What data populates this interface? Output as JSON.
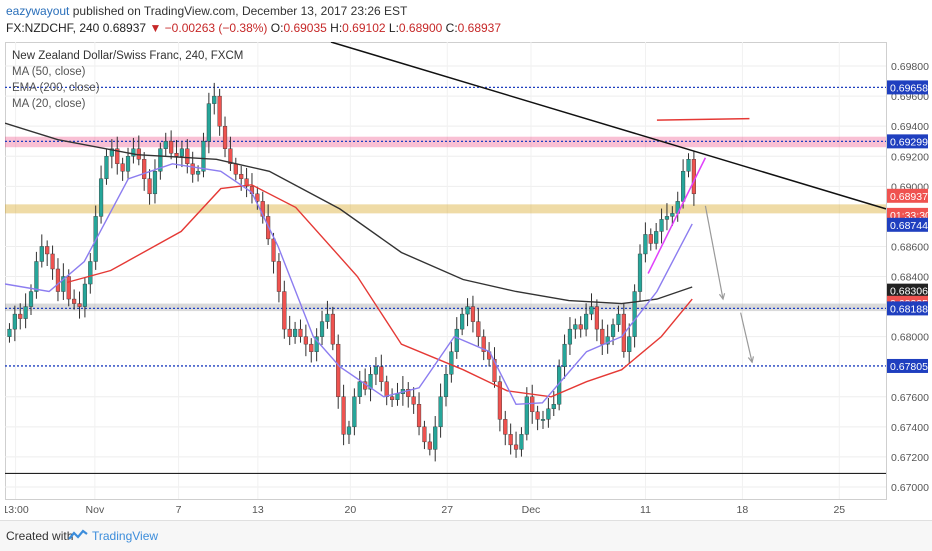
{
  "header": {
    "author": "eazywayout",
    "published_text": "published on TradingView.com, December 13, 2017 23:26 EST",
    "symbol": "FX:NZDCHF, 240",
    "last": "0.68937",
    "change": "−0.00263 (−0.38%)",
    "o_label": "O:",
    "o_value": "0.69035",
    "h_label": "H:",
    "h_value": "0.69102",
    "l_label": "L:",
    "l_value": "0.68900",
    "c_label": "C:",
    "c_value": "0.68937"
  },
  "legend": {
    "title": "New Zealand Dollar/Swiss Franc, 240, FXCM",
    "items": [
      "MA (50, close)",
      "EMA (200, close)",
      "MA (20, close)"
    ]
  },
  "footer": {
    "created": "Created with",
    "brand": "TradingView"
  },
  "colors": {
    "bull": "#26a69a",
    "bear": "#ef5350",
    "candle_wick": "#2f2f2f",
    "ma50": "#e53935",
    "ema200": "#333333",
    "ma20": "#8c7df0",
    "resistance": "#1f3fbf",
    "trend": "#111111"
  },
  "chart_data": {
    "type": "candlestick",
    "symbol": "NZDCHF",
    "timeframe": "240",
    "y_range": [
      0.6692,
      0.6996
    ],
    "y_ticks": [
      "0.69800",
      "0.69600",
      "0.69400",
      "0.69200",
      "0.69000",
      "0.68600",
      "0.68400",
      "0.68000",
      "0.67600",
      "0.67400",
      "0.67200",
      "0.67000"
    ],
    "x_ticks": [
      "13:00",
      "Nov",
      "7",
      "13",
      "20",
      "27",
      "Dec",
      "11",
      "18",
      "25"
    ],
    "price_labels": [
      {
        "text": "0.69658",
        "value": 0.69658,
        "bg": "#1f3fbf"
      },
      {
        "text": "0.69299",
        "value": 0.69299,
        "bg": "#1f3fbf"
      },
      {
        "text": "0.68937",
        "value": 0.68937,
        "bg": "#ef5350"
      },
      {
        "text": "01:33:30",
        "value": 0.6881,
        "bg": "#ef5350"
      },
      {
        "text": "0.68744",
        "value": 0.68744,
        "bg": "#1f3fbf"
      },
      {
        "text": "0.68306",
        "value": 0.68306,
        "bg": "#222222"
      },
      {
        "text": "0.68225",
        "value": 0.68225,
        "bg": "#ef5350"
      },
      {
        "text": "0.68188",
        "value": 0.68188,
        "bg": "#1f3fbf"
      },
      {
        "text": "0.67805",
        "value": 0.67805,
        "bg": "#1f3fbf"
      }
    ],
    "horizontal_levels": [
      {
        "value": 0.69658,
        "style": "dotted-blue"
      },
      {
        "value": 0.69299,
        "style": "dotted-blue"
      },
      {
        "value": 0.68188,
        "style": "dotted-blue"
      },
      {
        "value": 0.67805,
        "style": "dotted-blue"
      },
      {
        "value": 0.6709,
        "style": "solid-black"
      }
    ],
    "zones": [
      {
        "from": 0.6926,
        "to": 0.6933,
        "color": "pink"
      },
      {
        "from": 0.6882,
        "to": 0.6888,
        "color": "gold"
      },
      {
        "from": 0.6817,
        "to": 0.6822,
        "color": "gray"
      }
    ],
    "close_path": [
      0.6805,
      0.6815,
      0.6812,
      0.682,
      0.683,
      0.685,
      0.686,
      0.6855,
      0.6845,
      0.683,
      0.684,
      0.6825,
      0.6822,
      0.682,
      0.6835,
      0.685,
      0.688,
      0.6905,
      0.692,
      0.6925,
      0.6915,
      0.691,
      0.692,
      0.6925,
      0.6918,
      0.6905,
      0.6895,
      0.691,
      0.6925,
      0.693,
      0.6922,
      0.692,
      0.6925,
      0.6915,
      0.6908,
      0.691,
      0.693,
      0.6955,
      0.696,
      0.694,
      0.6925,
      0.6915,
      0.6908,
      0.6905,
      0.69,
      0.6895,
      0.689,
      0.688,
      0.6865,
      0.685,
      0.683,
      0.6805,
      0.68,
      0.6805,
      0.68,
      0.6795,
      0.679,
      0.68,
      0.681,
      0.6815,
      0.6795,
      0.676,
      0.6735,
      0.674,
      0.676,
      0.677,
      0.6765,
      0.6775,
      0.678,
      0.677,
      0.676,
      0.6758,
      0.6762,
      0.6765,
      0.676,
      0.6755,
      0.674,
      0.673,
      0.6725,
      0.674,
      0.676,
      0.6775,
      0.679,
      0.6805,
      0.6815,
      0.682,
      0.681,
      0.68,
      0.679,
      0.6785,
      0.677,
      0.6745,
      0.6735,
      0.6728,
      0.6725,
      0.6735,
      0.676,
      0.675,
      0.6745,
      0.6745,
      0.6752,
      0.6755,
      0.678,
      0.6795,
      0.6805,
      0.6808,
      0.6805,
      0.6815,
      0.682,
      0.6805,
      0.6795,
      0.68,
      0.6808,
      0.6815,
      0.679,
      0.68,
      0.683,
      0.6855,
      0.6868,
      0.6862,
      0.687,
      0.6878,
      0.688,
      0.6882,
      0.689,
      0.691,
      0.6918,
      0.6895
    ],
    "moving_averages": [
      {
        "name": "MA (50, close)",
        "color": "#e53935",
        "points": [
          [
            0.07,
            0.6836
          ],
          [
            0.12,
            0.6844
          ],
          [
            0.2,
            0.687
          ],
          [
            0.245,
            0.68985
          ],
          [
            0.28,
            0.6901
          ],
          [
            0.33,
            0.6886
          ],
          [
            0.4,
            0.684
          ],
          [
            0.45,
            0.6795
          ],
          [
            0.52,
            0.6778
          ],
          [
            0.57,
            0.6764
          ],
          [
            0.62,
            0.676
          ],
          [
            0.66,
            0.677
          ],
          [
            0.7,
            0.6778
          ],
          [
            0.745,
            0.68
          ],
          [
            0.78,
            0.6825
          ]
        ]
      },
      {
        "name": "EMA (200, close)",
        "color": "#333333",
        "points": [
          [
            0.0,
            0.6942
          ],
          [
            0.06,
            0.6931
          ],
          [
            0.15,
            0.6921
          ],
          [
            0.24,
            0.6918
          ],
          [
            0.3,
            0.691
          ],
          [
            0.38,
            0.6885
          ],
          [
            0.45,
            0.6856
          ],
          [
            0.52,
            0.6838
          ],
          [
            0.58,
            0.683
          ],
          [
            0.64,
            0.6824
          ],
          [
            0.7,
            0.6822
          ],
          [
            0.74,
            0.6825
          ],
          [
            0.78,
            0.6833
          ]
        ]
      },
      {
        "name": "MA (20, close)",
        "color": "#8c7df0",
        "points": [
          [
            0.0,
            0.6835
          ],
          [
            0.05,
            0.683
          ],
          [
            0.09,
            0.685
          ],
          [
            0.14,
            0.6905
          ],
          [
            0.19,
            0.6915
          ],
          [
            0.245,
            0.691
          ],
          [
            0.28,
            0.6896
          ],
          [
            0.31,
            0.686
          ],
          [
            0.35,
            0.68
          ],
          [
            0.38,
            0.678
          ],
          [
            0.43,
            0.676
          ],
          [
            0.47,
            0.6766
          ],
          [
            0.51,
            0.68
          ],
          [
            0.55,
            0.679
          ],
          [
            0.58,
            0.6755
          ],
          [
            0.61,
            0.6756
          ],
          [
            0.66,
            0.679
          ],
          [
            0.7,
            0.68
          ],
          [
            0.74,
            0.683
          ],
          [
            0.78,
            0.6875
          ]
        ]
      }
    ],
    "trendlines": [
      {
        "from": [
          0.37,
          0.6996
        ],
        "to": [
          1.0,
          0.6885
        ],
        "color": "#111111"
      },
      {
        "from": [
          0.73,
          0.6842
        ],
        "to": [
          0.795,
          0.6919
        ],
        "color": "#e040fb"
      },
      {
        "from": [
          0.74,
          0.6944
        ],
        "to": [
          0.845,
          0.6945
        ],
        "color": "#e53935"
      }
    ],
    "arrows": [
      {
        "from": [
          0.795,
          0.6887
        ],
        "to": [
          0.815,
          0.6825
        ]
      },
      {
        "from": [
          0.835,
          0.6816
        ],
        "to": [
          0.848,
          0.6783
        ]
      }
    ]
  }
}
